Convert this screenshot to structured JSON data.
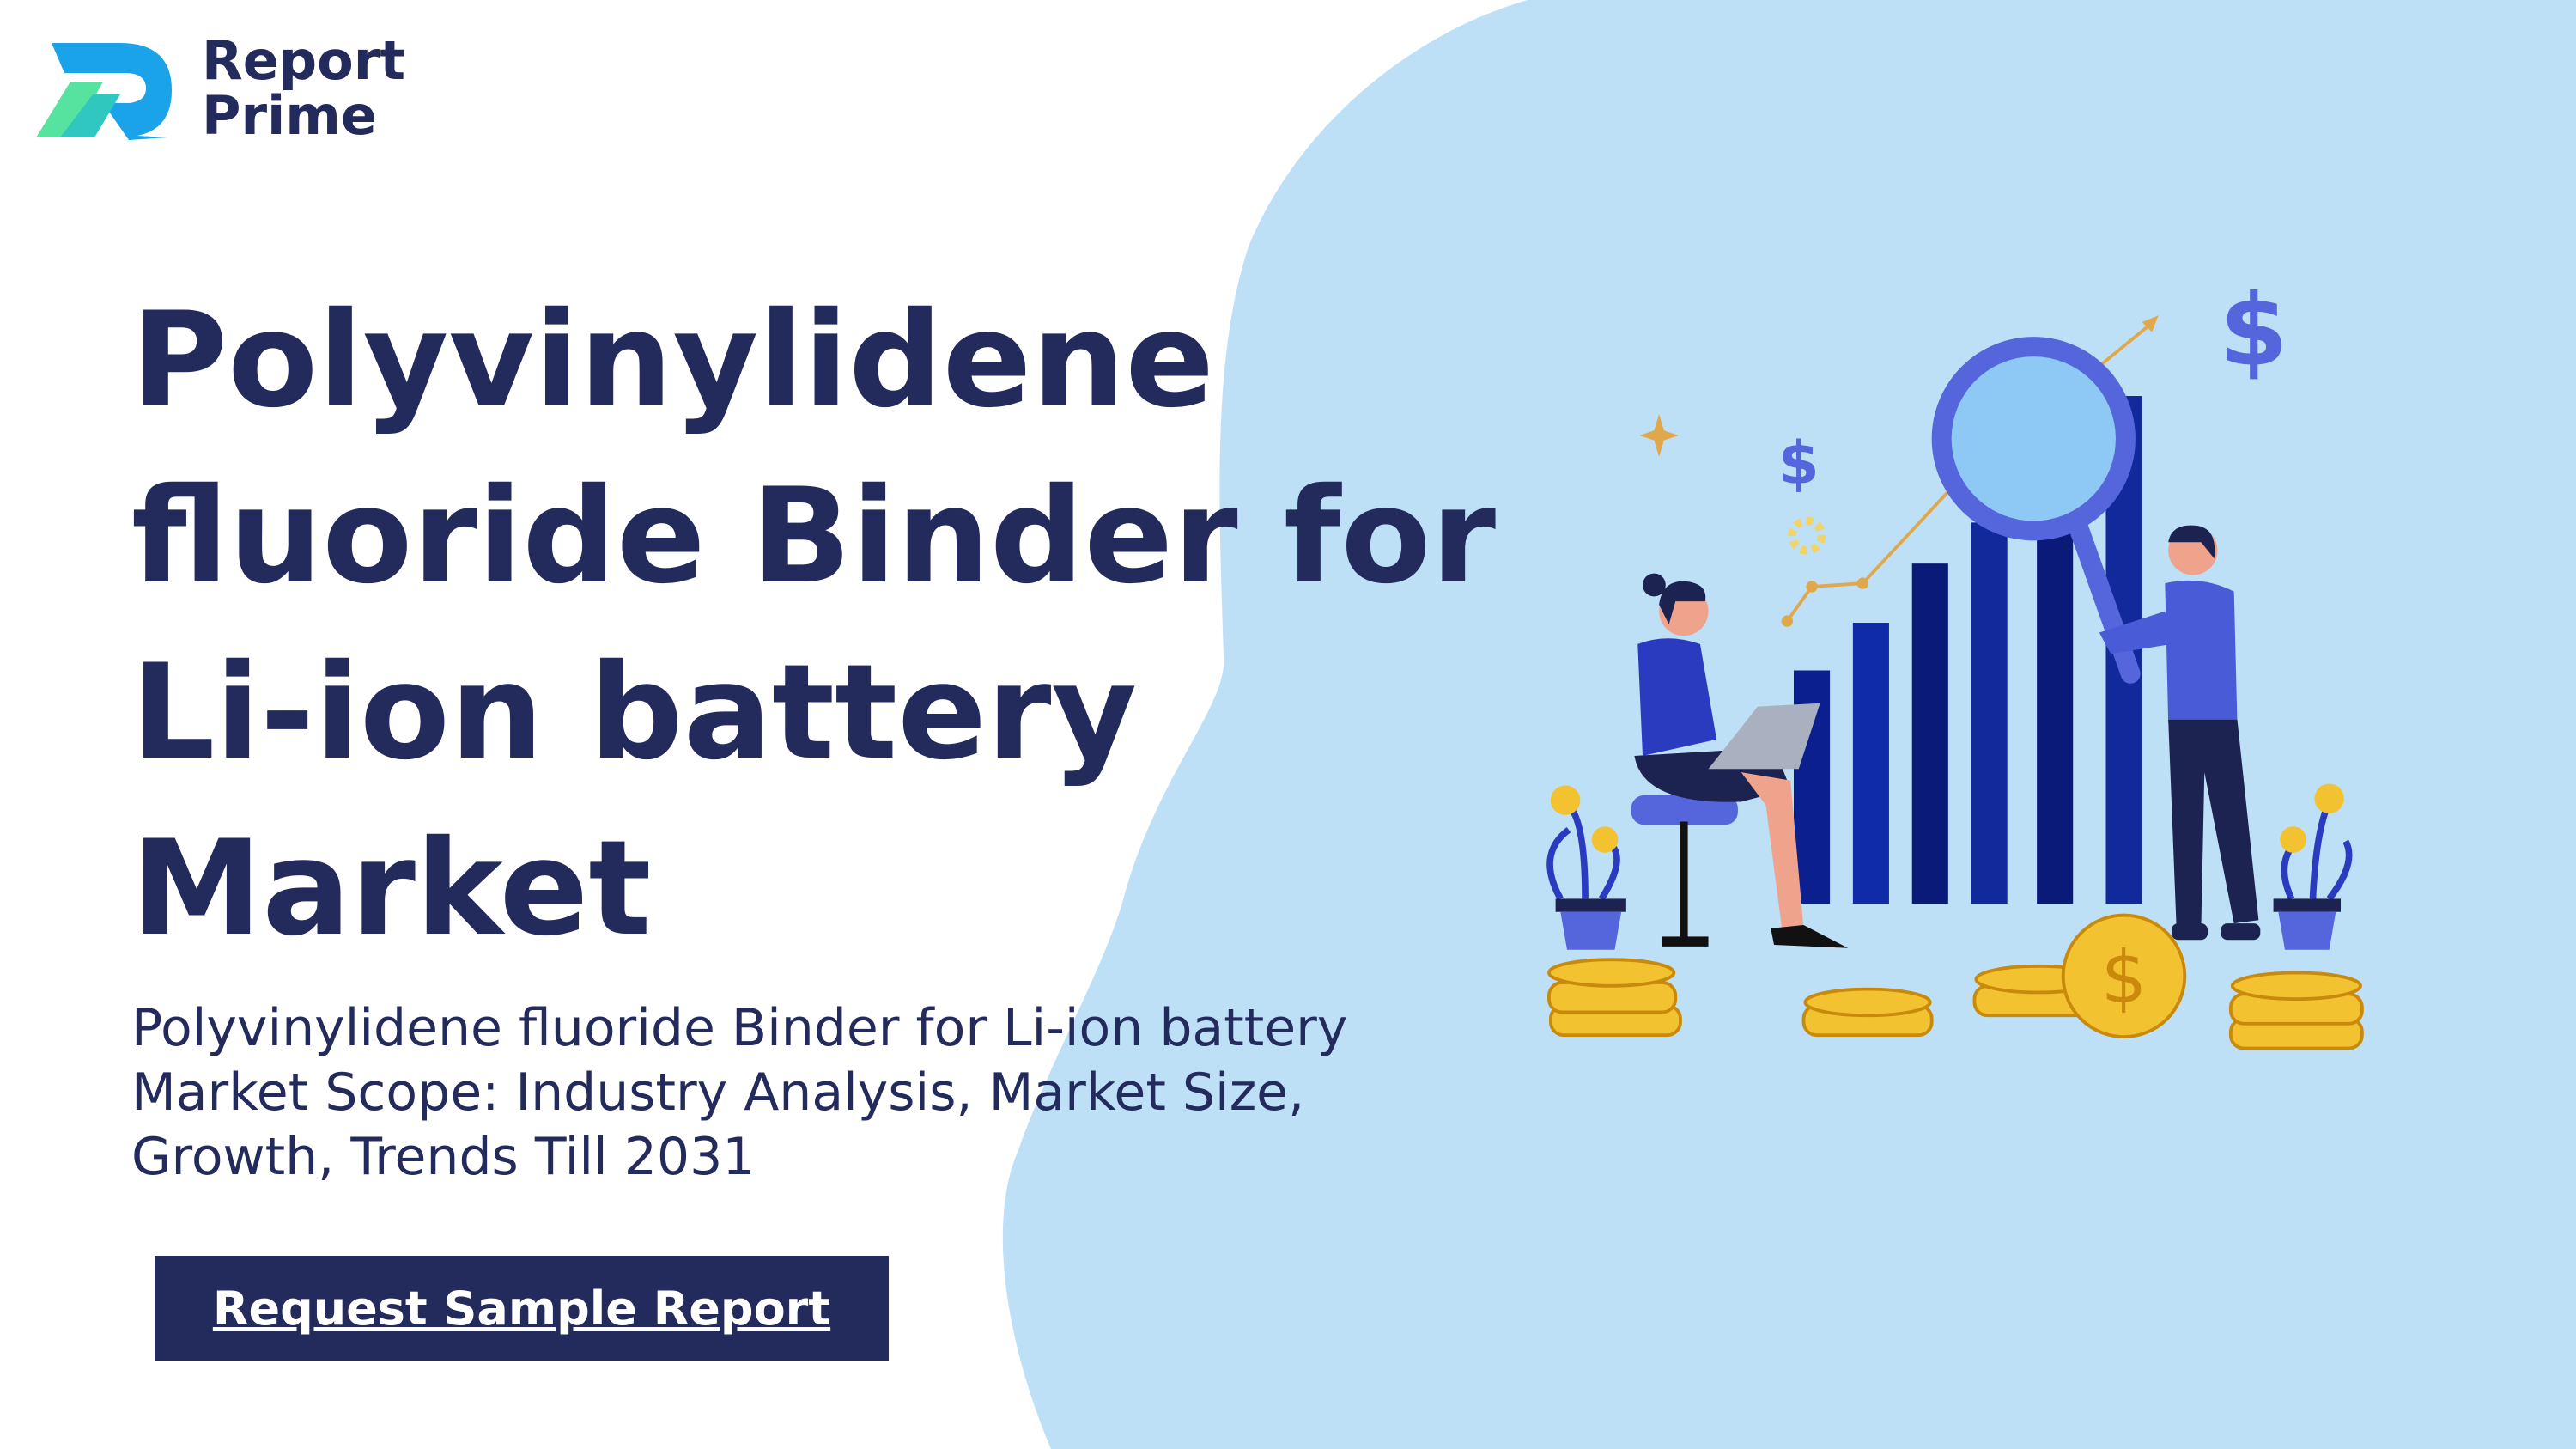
{
  "logo": {
    "line1": "Report",
    "line2": "Prime"
  },
  "title": "Polyvinylidene fluoride Binder for Li-ion battery Market",
  "subtitle": "Polyvinylidene fluoride Binder for Li-ion battery Market Scope: Industry Analysis, Market Size, Growth, Trends Till 2031",
  "button": "Request Sample Report"
}
